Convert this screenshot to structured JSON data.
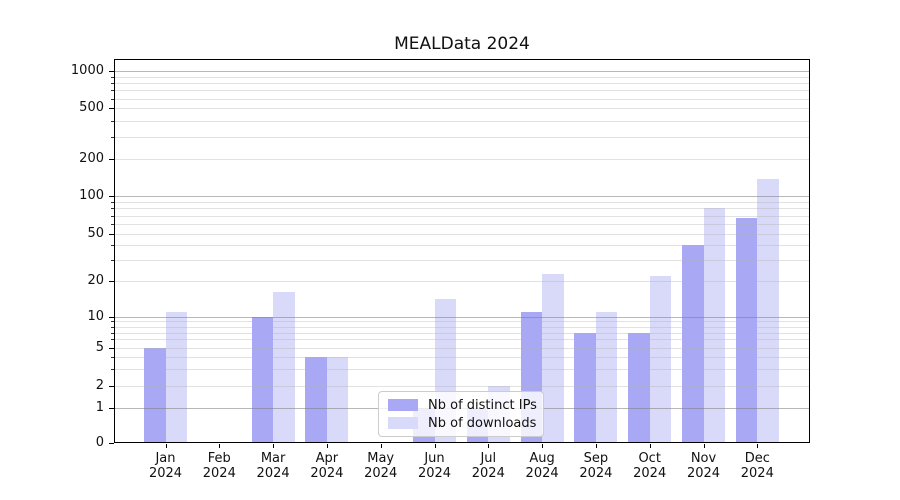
{
  "title": "MEALData 2024",
  "colors": {
    "background": "#ffffff",
    "bar_distinct_ips": "#a8a8f4",
    "bar_downloads": "#d9d9fa",
    "grid_major": "#b0b0b0",
    "grid_minor": "#e3e3e3",
    "axis": "#000000",
    "legend_border": "#cccccc"
  },
  "legend": {
    "items": [
      {
        "label": "Nb of distinct IPs",
        "color": "#a8a8f4"
      },
      {
        "label": "Nb of downloads",
        "color": "#d9d9fa"
      }
    ]
  },
  "chart_data": {
    "type": "bar",
    "title": "MEALData 2024",
    "categories": [
      "Jan 2024",
      "Feb 2024",
      "Mar 2024",
      "Apr 2024",
      "May 2024",
      "Jun 2024",
      "Jul 2024",
      "Aug 2024",
      "Sep 2024",
      "Oct 2024",
      "Nov 2024",
      "Dec 2024"
    ],
    "series": [
      {
        "name": "Nb of distinct IPs",
        "color": "#a8a8f4",
        "values": [
          5,
          0,
          10,
          4,
          0,
          1,
          1,
          11,
          7,
          7,
          40,
          67
        ]
      },
      {
        "name": "Nb of downloads",
        "color": "#d9d9fa",
        "values": [
          11,
          0,
          16,
          4,
          0,
          14,
          2,
          23,
          11,
          22,
          80,
          138
        ]
      }
    ],
    "xlabel": "",
    "ylabel": "",
    "yscale": "symlog",
    "ylim": [
      0,
      1250
    ],
    "y_ticks": [
      0,
      1,
      2,
      5,
      10,
      20,
      50,
      100,
      200,
      500,
      1000
    ],
    "y_minor_multipliers": [
      2,
      3,
      4,
      5,
      6,
      7,
      8,
      9
    ],
    "y_minor_decades": [
      1,
      10,
      100
    ],
    "grid": "on",
    "legend_position": "inside lower-center"
  }
}
